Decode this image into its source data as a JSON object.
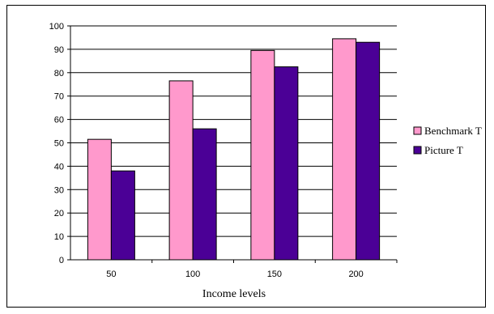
{
  "chart_data": {
    "type": "bar",
    "title": "",
    "xlabel": "Income levels",
    "ylabel": "",
    "categories": [
      "50",
      "100",
      "150",
      "200"
    ],
    "series": [
      {
        "name": "Benchmark T",
        "color": "#ff99cc",
        "values": [
          51.5,
          76.5,
          89.5,
          94.5
        ]
      },
      {
        "name": "Picture T",
        "color": "#4b0096",
        "values": [
          38,
          56,
          82.5,
          93
        ]
      }
    ],
    "ylim": [
      0,
      100
    ],
    "yticks": [
      "0",
      "10",
      "20",
      "30",
      "40",
      "50",
      "60",
      "70",
      "80",
      "90",
      "100"
    ],
    "grid": true,
    "legend": "right"
  }
}
